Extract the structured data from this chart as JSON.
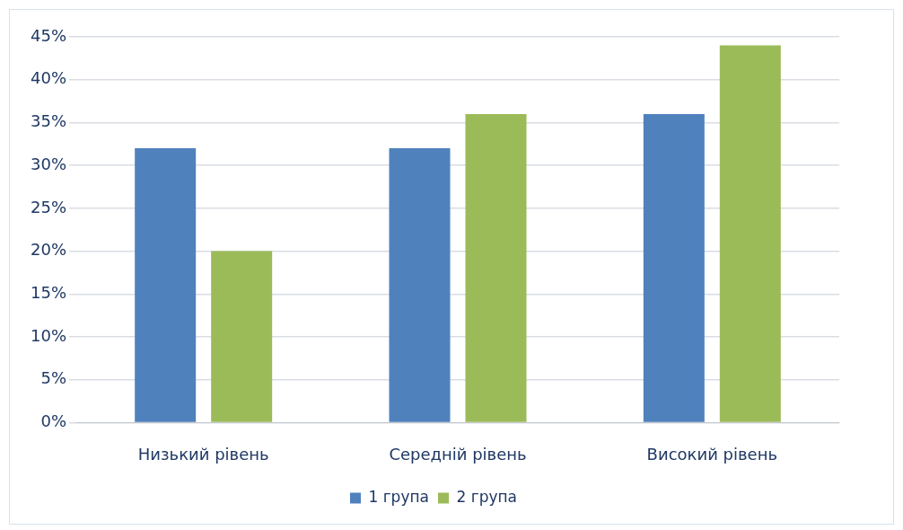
{
  "chart_data": {
    "type": "bar",
    "categories": [
      "Низький рівень",
      "Середній рівень",
      "Високий рівень"
    ],
    "series": [
      {
        "name": "1 група",
        "color": "#4f81bd",
        "values": [
          32,
          32,
          36
        ]
      },
      {
        "name": "2 група",
        "color": "#9bbb59",
        "values": [
          20,
          36,
          44
        ]
      }
    ],
    "ylim": [
      0,
      45
    ],
    "yticks": [
      {
        "value": 0,
        "label": "0%"
      },
      {
        "value": 5,
        "label": "5%"
      },
      {
        "value": 10,
        "label": "10%"
      },
      {
        "value": 15,
        "label": "15%"
      },
      {
        "value": 20,
        "label": "20%"
      },
      {
        "value": 25,
        "label": "25%"
      },
      {
        "value": 30,
        "label": "30%"
      },
      {
        "value": 35,
        "label": "35%"
      },
      {
        "value": 40,
        "label": "40%"
      },
      {
        "value": 45,
        "label": "45%"
      }
    ],
    "grid": "y",
    "legend": "bottom"
  }
}
